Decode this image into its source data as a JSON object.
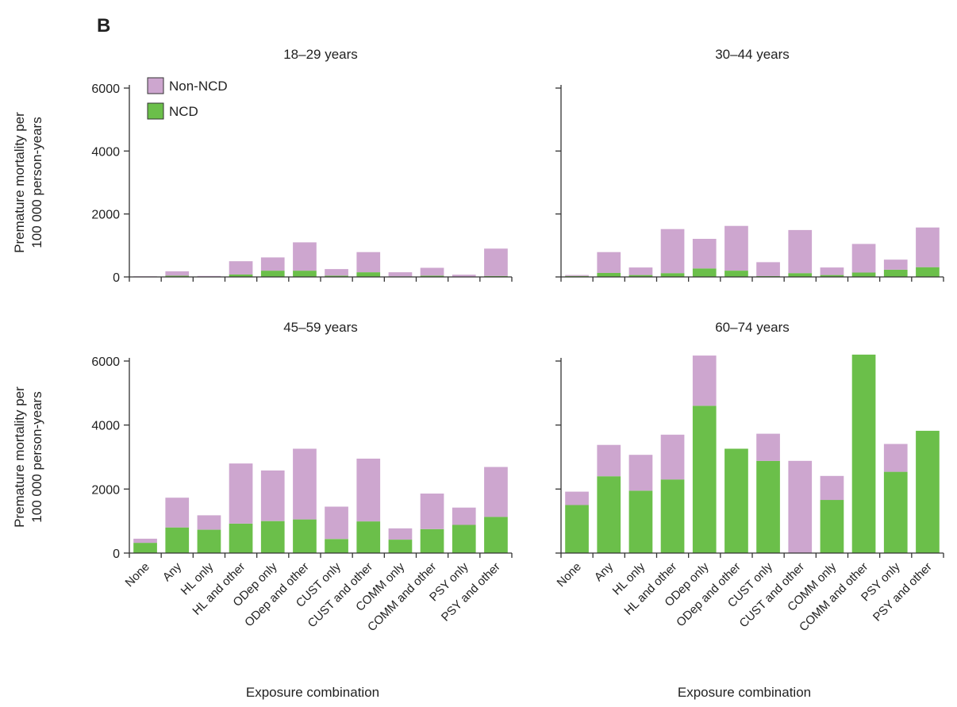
{
  "figure": {
    "panel_letter": "B"
  },
  "legend": {
    "items": [
      {
        "label": "Non-NCD",
        "color": "#cda6cf"
      },
      {
        "label": "NCD",
        "color": "#6bbf4a"
      }
    ]
  },
  "chart_data": [
    {
      "type": "bar",
      "stacked": true,
      "title": "18–29 years",
      "ylabel": "Premature mortality per 100 000 person-years",
      "xlabel": "",
      "ylim": [
        0,
        6000
      ],
      "yticks": [
        0,
        2000,
        4000,
        6000
      ],
      "categories": [
        "None",
        "Any",
        "HL only",
        "HL and other",
        "ODep only",
        "ODep and other",
        "CUST only",
        "CUST and other",
        "COMM only",
        "COMM and other",
        "PSY only",
        "PSY and other"
      ],
      "series": [
        {
          "name": "NCD",
          "values": [
            10,
            40,
            10,
            80,
            200,
            200,
            40,
            150,
            20,
            40,
            10,
            30
          ]
        },
        {
          "name": "Non-NCD",
          "values": [
            10,
            140,
            20,
            420,
            420,
            900,
            210,
            640,
            130,
            250,
            60,
            870
          ]
        }
      ]
    },
    {
      "type": "bar",
      "stacked": true,
      "title": "30–44 years",
      "ylabel": "",
      "xlabel": "",
      "ylim": [
        0,
        6000
      ],
      "yticks": [
        0,
        2000,
        4000,
        6000
      ],
      "categories": [
        "None",
        "Any",
        "HL only",
        "HL and other",
        "ODep only",
        "ODep and other",
        "CUST only",
        "CUST and other",
        "COMM only",
        "COMM and other",
        "PSY only",
        "PSY and other"
      ],
      "series": [
        {
          "name": "NCD",
          "values": [
            30,
            130,
            60,
            120,
            270,
            200,
            30,
            120,
            60,
            140,
            230,
            310
          ]
        },
        {
          "name": "Non-NCD",
          "values": [
            30,
            660,
            240,
            1400,
            940,
            1420,
            440,
            1370,
            240,
            910,
            320,
            1260
          ]
        }
      ]
    },
    {
      "type": "bar",
      "stacked": true,
      "title": "45–59 years",
      "ylabel": "Premature mortality per 100 000 person-years",
      "xlabel": "Exposure combination",
      "ylim": [
        0,
        6000
      ],
      "yticks": [
        0,
        2000,
        4000,
        6000
      ],
      "categories": [
        "None",
        "Any",
        "HL only",
        "HL and other",
        "ODep only",
        "ODep and other",
        "CUST only",
        "CUST and other",
        "COMM only",
        "COMM and other",
        "PSY only",
        "PSY and other"
      ],
      "series": [
        {
          "name": "NCD",
          "values": [
            320,
            800,
            730,
            920,
            1000,
            1050,
            440,
            990,
            420,
            750,
            880,
            1130
          ]
        },
        {
          "name": "Non-NCD",
          "values": [
            130,
            930,
            450,
            1880,
            1580,
            2210,
            1010,
            1960,
            350,
            1110,
            540,
            1560
          ]
        }
      ]
    },
    {
      "type": "bar",
      "stacked": true,
      "title": "60–74 years",
      "ylabel": "",
      "xlabel": "Exposure combination",
      "ylim": [
        0,
        6000
      ],
      "yticks": [
        0,
        2000,
        4000,
        6000
      ],
      "categories": [
        "None",
        "Any",
        "HL only",
        "HL and other",
        "ODep only",
        "ODep and other",
        "CUST only",
        "CUST and other",
        "COMM only",
        "COMM and other",
        "PSY only",
        "PSY and other"
      ],
      "series": [
        {
          "name": "NCD",
          "values": [
            1500,
            2400,
            1950,
            2300,
            4600,
            3260,
            2880,
            0,
            1660,
            6200,
            2540,
            3820
          ]
        },
        {
          "name": "Non-NCD",
          "values": [
            420,
            980,
            1120,
            1400,
            1570,
            0,
            850,
            2880,
            750,
            0,
            870,
            0
          ]
        }
      ]
    }
  ]
}
